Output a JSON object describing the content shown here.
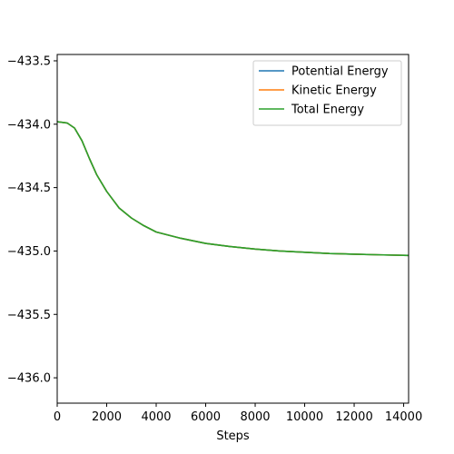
{
  "chart_data": {
    "type": "line",
    "title": "",
    "xlabel": "Steps",
    "ylabel": "",
    "xlim": [
      0,
      14200
    ],
    "ylim": [
      -436.2,
      -433.45
    ],
    "x_ticks": [
      0,
      2000,
      4000,
      6000,
      8000,
      10000,
      12000,
      14000
    ],
    "x_tick_labels": [
      "0",
      "2000",
      "4000",
      "6000",
      "8000",
      "10000",
      "12000",
      "14000"
    ],
    "y_ticks": [
      -436.0,
      -435.5,
      -435.0,
      -434.5,
      -434.0,
      -433.5
    ],
    "y_tick_labels": [
      "−436.0",
      "−435.5",
      "−435.0",
      "−434.5",
      "−434.0",
      "−433.5"
    ],
    "grid": false,
    "legend_position": "top-right",
    "series": [
      {
        "name": "Potential Energy",
        "color": "#1f77b4",
        "x": [
          0,
          400,
          700,
          1000,
          1300,
          1600,
          2000,
          2500,
          3000,
          3500,
          4000,
          5000,
          6000,
          7000,
          8000,
          9000,
          10000,
          11000,
          12000,
          13000,
          14200
        ],
        "y": [
          -433.98,
          -433.99,
          -434.03,
          -434.13,
          -434.27,
          -434.4,
          -434.53,
          -434.66,
          -434.74,
          -434.8,
          -434.85,
          -434.9,
          -434.94,
          -434.965,
          -434.985,
          -435.0,
          -435.01,
          -435.02,
          -435.025,
          -435.03,
          -435.035
        ]
      },
      {
        "name": "Kinetic Energy",
        "color": "#ff7f0e",
        "x": [
          0,
          400,
          700,
          1000,
          1300,
          1600,
          2000,
          2500,
          3000,
          3500,
          4000,
          5000,
          6000,
          7000,
          8000,
          9000,
          10000,
          11000,
          12000,
          13000,
          14200
        ],
        "y": [
          -433.98,
          -433.99,
          -434.03,
          -434.13,
          -434.27,
          -434.4,
          -434.53,
          -434.66,
          -434.74,
          -434.8,
          -434.85,
          -434.9,
          -434.94,
          -434.965,
          -434.985,
          -435.0,
          -435.01,
          -435.02,
          -435.025,
          -435.03,
          -435.035
        ]
      },
      {
        "name": "Total Energy",
        "color": "#2ca02c",
        "x": [
          0,
          400,
          700,
          1000,
          1300,
          1600,
          2000,
          2500,
          3000,
          3500,
          4000,
          5000,
          6000,
          7000,
          8000,
          9000,
          10000,
          11000,
          12000,
          13000,
          14200
        ],
        "y": [
          -433.98,
          -433.99,
          -434.03,
          -434.13,
          -434.27,
          -434.4,
          -434.53,
          -434.66,
          -434.74,
          -434.8,
          -434.85,
          -434.9,
          -434.94,
          -434.965,
          -434.985,
          -435.0,
          -435.01,
          -435.02,
          -435.025,
          -435.03,
          -435.035
        ]
      }
    ]
  }
}
